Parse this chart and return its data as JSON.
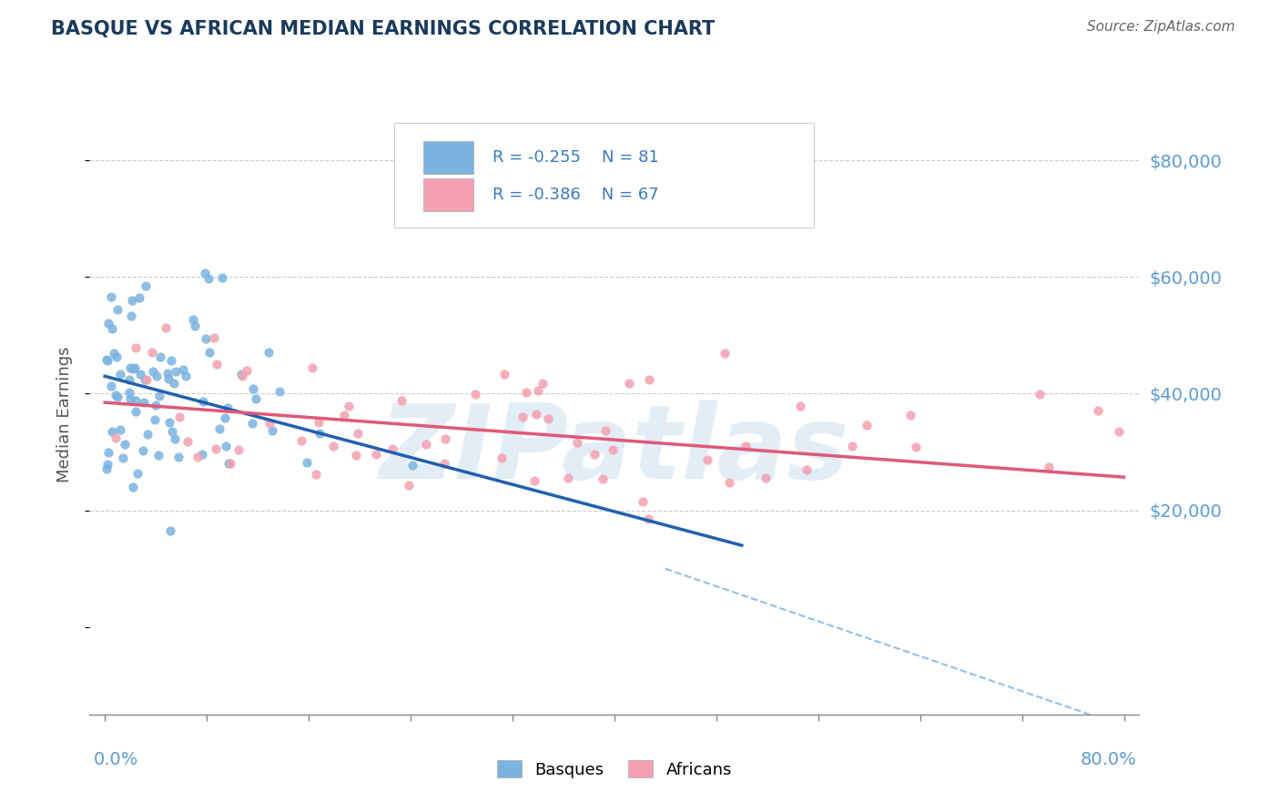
{
  "title": "BASQUE VS AFRICAN MEDIAN EARNINGS CORRELATION CHART",
  "source": "Source: ZipAtlas.com",
  "ylabel": "Median Earnings",
  "title_color": "#1a3a5c",
  "axis_label_color": "#5b9bd5",
  "yticks": [
    20000,
    40000,
    60000,
    80000
  ],
  "ytick_labels": [
    "$20,000",
    "$40,000",
    "$60,000",
    "$80,000"
  ],
  "xmin": 0.0,
  "xmax": 0.8,
  "ymin": -15000,
  "ymax": 88000,
  "basque_color": "#7ab3e0",
  "african_color": "#f4a0b0",
  "blue_line_color": "#2060b0",
  "pink_line_color": "#e05878",
  "dashed_line_color": "#8ab8e0",
  "legend_text_color": "#3a7abf",
  "watermark_color": "#ccdff0",
  "basque_intercept": 43000,
  "basque_slope": -58000,
  "african_intercept": 38500,
  "african_slope": -16000,
  "dashed_intercept": 43000,
  "dashed_slope": -75000,
  "blue_line_xend": 0.5,
  "dashed_xstart": 0.44
}
